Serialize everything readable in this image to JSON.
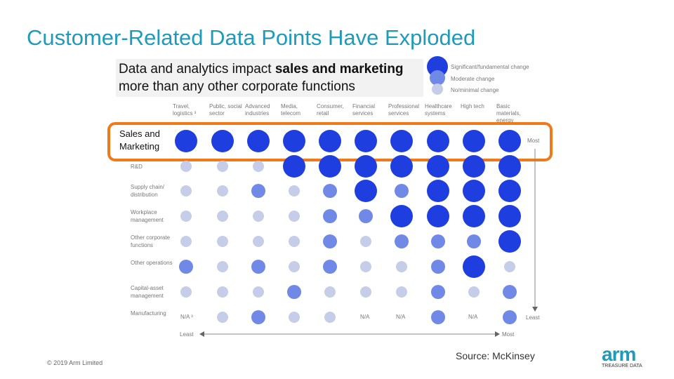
{
  "slide": {
    "title": "Customer-Related Data Points Have Exploded",
    "subtitle_pre": "Data and analytics impact ",
    "subtitle_bold": "sales and marketing",
    "subtitle_post": " more than any other corporate functions",
    "source": "Source: McKinsey",
    "copyright": "© 2019 Arm Limited",
    "logo_text": "arm",
    "logo_subtext": "TREASURE DATA"
  },
  "colors": {
    "title": "#1f9bb9",
    "significant": "#1f3ee0",
    "moderate": "#7088e6",
    "minimal": "#c5cde9",
    "highlight_border": "#f07a1a"
  },
  "chart_data": {
    "type": "bubble-matrix",
    "legend": [
      {
        "level": 3,
        "label": "Significant/fundamental change"
      },
      {
        "level": 2,
        "label": "Moderate change"
      },
      {
        "level": 1,
        "label": "No/minimal change"
      }
    ],
    "columns": [
      "Travel, logistics ³",
      "Public, social sector",
      "Advanced industries",
      "Media, telecom",
      "Consumer, retail",
      "Financial services",
      "Professional services",
      "Healthcare systems",
      "High tech",
      "Basic materials, energy"
    ],
    "rows": [
      {
        "label": "Sales and Marketing",
        "values": [
          3,
          3,
          3,
          3,
          3,
          3,
          3,
          3,
          3,
          3
        ]
      },
      {
        "label": "R&D",
        "values": [
          1,
          1,
          1,
          3,
          3,
          3,
          3,
          3,
          3,
          3
        ]
      },
      {
        "label": "Supply chain/ distribution",
        "values": [
          1,
          1,
          2,
          1,
          2,
          3,
          2,
          3,
          3,
          3
        ]
      },
      {
        "label": "Workplace management",
        "values": [
          1,
          1,
          1,
          1,
          2,
          2,
          3,
          3,
          3,
          3
        ]
      },
      {
        "label": "Other corporate functions",
        "values": [
          1,
          1,
          1,
          1,
          2,
          1,
          2,
          2,
          2,
          3
        ]
      },
      {
        "label": "Other operations",
        "values": [
          2,
          1,
          2,
          1,
          2,
          1,
          1,
          2,
          3,
          1
        ]
      },
      {
        "label": "Capital-asset management",
        "values": [
          1,
          1,
          1,
          2,
          1,
          1,
          1,
          2,
          1,
          2
        ]
      },
      {
        "label": "Manufacturing",
        "values": [
          null,
          1,
          2,
          1,
          1,
          null,
          null,
          2,
          null,
          2
        ]
      }
    ],
    "na_label": "N/A",
    "na_first_label": "N/A ³",
    "x_axis": {
      "left_label": "Least",
      "right_label": "Most"
    },
    "y_axis": {
      "top_label": "Most",
      "bottom_label": "Least"
    }
  }
}
